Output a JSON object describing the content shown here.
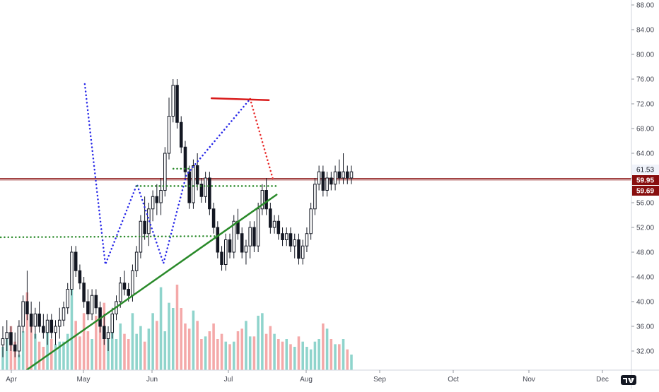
{
  "chart_data": {
    "type": "candlestick",
    "y_axis": {
      "position": "right",
      "range": [
        28.5,
        89
      ],
      "ticks": [
        "32.00",
        "36.00",
        "40.00",
        "44.00",
        "48.00",
        "52.00",
        "56.00",
        "60.00",
        "64.00",
        "68.00",
        "72.00",
        "76.00",
        "80.00",
        "84.00",
        "88.00"
      ]
    },
    "x_axis": {
      "ticks": [
        "Apr",
        "May",
        "Jun",
        "Jul",
        "Aug",
        "Sep",
        "Oct",
        "Nov",
        "Dec"
      ]
    },
    "price_labels": [
      {
        "text": "61.53",
        "value": 61.53,
        "bg": "#f0f3fa",
        "fg": "#131722"
      },
      {
        "text": "59.95",
        "value": 59.95,
        "bg": "#880e0e",
        "fg": "#ffffff"
      },
      {
        "text": "59.69",
        "value": 59.69,
        "bg": "#880e0e",
        "fg": "#ffffff"
      }
    ],
    "horizontal_lines": [
      {
        "value": 59.95,
        "color": "#880e0e"
      },
      {
        "value": 59.69,
        "color": "#880e0e"
      }
    ],
    "candles": [
      [
        33,
        36,
        31,
        34
      ],
      [
        34,
        37,
        32,
        35
      ],
      [
        35,
        36,
        32,
        33
      ],
      [
        33,
        35,
        31,
        32
      ],
      [
        32,
        37,
        31,
        36
      ],
      [
        36,
        41,
        35,
        40
      ],
      [
        40,
        45,
        37,
        38
      ],
      [
        38,
        40,
        35,
        36
      ],
      [
        36,
        39,
        34,
        38
      ],
      [
        38,
        40,
        35,
        36
      ],
      [
        36,
        38,
        34,
        35
      ],
      [
        35,
        38,
        33,
        37
      ],
      [
        37,
        38,
        34,
        35
      ],
      [
        35,
        37,
        33,
        36
      ],
      [
        36,
        39,
        34,
        37
      ],
      [
        37,
        40,
        36,
        39
      ],
      [
        39,
        43,
        38,
        42
      ],
      [
        42,
        49,
        41,
        48
      ],
      [
        48,
        49,
        44,
        45
      ],
      [
        45,
        46,
        42,
        43
      ],
      [
        43,
        44,
        39,
        40
      ],
      [
        40,
        42,
        37,
        38
      ],
      [
        38,
        42,
        37,
        41
      ],
      [
        41,
        42,
        38,
        39
      ],
      [
        39,
        40,
        35,
        36
      ],
      [
        36,
        38,
        33,
        34
      ],
      [
        34,
        36,
        32,
        35
      ],
      [
        35,
        39,
        34,
        38
      ],
      [
        38,
        41,
        37,
        40
      ],
      [
        40,
        44,
        39,
        43
      ],
      [
        43,
        45,
        41,
        42
      ],
      [
        42,
        43,
        40,
        41
      ],
      [
        41,
        46,
        40,
        45
      ],
      [
        45,
        49,
        44,
        48
      ],
      [
        48,
        54,
        47,
        53
      ],
      [
        53,
        57,
        50,
        51
      ],
      [
        51,
        56,
        49,
        55
      ],
      [
        55,
        58,
        53,
        57
      ],
      [
        57,
        59,
        54,
        56
      ],
      [
        56,
        60,
        54,
        58
      ],
      [
        58,
        65,
        57,
        64
      ],
      [
        64,
        73,
        63,
        70
      ],
      [
        70,
        76,
        69,
        75
      ],
      [
        75,
        76,
        68,
        69
      ],
      [
        69,
        70,
        64,
        65
      ],
      [
        65,
        66,
        60,
        61
      ],
      [
        61,
        62,
        55,
        56
      ],
      [
        56,
        63,
        55,
        62
      ],
      [
        62,
        64,
        58,
        59
      ],
      [
        59,
        60,
        56,
        57
      ],
      [
        57,
        61,
        56,
        60
      ],
      [
        60,
        61,
        54,
        55
      ],
      [
        55,
        56,
        51,
        52
      ],
      [
        52,
        53,
        47,
        48
      ],
      [
        48,
        49,
        45,
        46
      ],
      [
        46,
        51,
        45,
        50
      ],
      [
        50,
        51,
        47,
        48
      ],
      [
        48,
        54,
        47,
        53
      ],
      [
        53,
        55,
        50,
        51
      ],
      [
        51,
        52,
        47,
        48
      ],
      [
        48,
        50,
        46,
        49
      ],
      [
        49,
        53,
        47,
        52
      ],
      [
        52,
        53,
        48,
        49
      ],
      [
        49,
        56,
        48,
        55
      ],
      [
        55,
        59,
        54,
        58
      ],
      [
        58,
        60,
        54,
        55
      ],
      [
        55,
        56,
        51,
        52
      ],
      [
        52,
        54,
        51,
        53
      ],
      [
        53,
        54,
        50,
        51
      ],
      [
        51,
        52,
        49,
        50
      ],
      [
        50,
        52,
        49,
        51
      ],
      [
        51,
        52,
        48,
        49
      ],
      [
        49,
        51,
        47,
        50
      ],
      [
        50,
        51,
        46,
        47
      ],
      [
        47,
        50,
        46,
        49
      ],
      [
        49,
        52,
        48,
        51
      ],
      [
        51,
        56,
        50,
        55
      ],
      [
        55,
        60,
        54,
        59
      ],
      [
        59,
        62,
        58,
        61
      ],
      [
        61,
        62,
        57,
        58
      ],
      [
        58,
        61,
        57,
        60
      ],
      [
        60,
        61,
        58,
        59
      ],
      [
        59,
        62,
        58,
        61
      ],
      [
        61,
        63,
        59,
        60
      ],
      [
        60,
        64,
        59,
        61
      ],
      [
        61,
        62,
        59,
        60
      ],
      [
        60,
        62,
        59,
        61
      ]
    ],
    "volume": [
      9,
      13,
      17,
      11,
      6,
      15,
      30,
      20,
      14,
      11,
      9,
      15,
      12,
      10,
      11,
      11,
      14,
      36,
      19,
      13,
      22,
      15,
      12,
      21,
      18,
      26,
      13,
      15,
      12,
      18,
      14,
      12,
      22,
      14,
      17,
      11,
      16,
      22,
      19,
      32,
      15,
      26,
      24,
      33,
      24,
      18,
      16,
      23,
      19,
      12,
      13,
      15,
      18,
      12,
      14,
      11,
      10,
      11,
      15,
      16,
      19,
      13,
      13,
      21,
      22,
      14,
      17,
      14,
      12,
      11,
      12,
      10,
      9,
      13,
      11,
      9,
      8,
      11,
      12,
      18,
      16,
      12,
      10,
      10,
      12,
      8,
      6
    ],
    "pattern_lines": [
      {
        "style": "dotted",
        "color": "#2727e8",
        "points": [
          [
            1.02,
            75.2
          ],
          [
            1.32,
            46.0
          ],
          [
            1.78,
            59.0
          ],
          [
            2.15,
            46.2
          ],
          [
            2.45,
            60.5
          ],
          [
            3.28,
            72.8
          ]
        ]
      },
      {
        "style": "dotted",
        "color": "#e82727",
        "points": [
          [
            3.28,
            72.8
          ],
          [
            3.58,
            59.5
          ]
        ]
      },
      {
        "style": "dotted",
        "color": "#2a8a2a",
        "points": [
          [
            -0.25,
            50.4
          ],
          [
            2.85,
            50.6
          ]
        ]
      },
      {
        "style": "dotted",
        "color": "#2a8a2a",
        "points": [
          [
            1.78,
            58.7
          ],
          [
            3.62,
            58.7
          ]
        ]
      },
      {
        "style": "dotted",
        "color": "#2a8a2a",
        "points": [
          [
            2.28,
            61.5
          ],
          [
            2.48,
            61.5
          ]
        ]
      },
      {
        "style": "solid",
        "color": "#d91b1b",
        "points": [
          [
            2.78,
            72.9
          ],
          [
            3.52,
            72.6
          ]
        ]
      },
      {
        "style": "solid",
        "color": "#2a8a2a",
        "points": [
          [
            0.22,
            29.0
          ],
          [
            3.62,
            57.3
          ]
        ]
      }
    ]
  }
}
